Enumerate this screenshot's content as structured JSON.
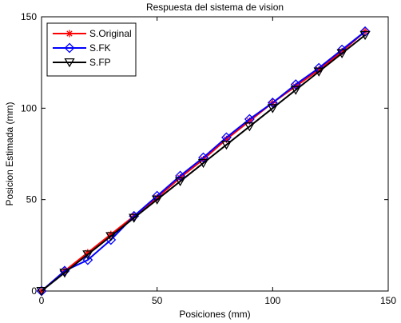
{
  "chart_data": {
    "type": "line",
    "title": "Respuesta del sistema de vision",
    "xlabel": "Posiciones (mm)",
    "ylabel": "Posicion Estimada (mm)",
    "xlim": [
      0,
      150
    ],
    "ylim": [
      0,
      150
    ],
    "xticks": [
      0,
      50,
      100,
      150
    ],
    "yticks": [
      0,
      50,
      100,
      150
    ],
    "grid": false,
    "legend_position": "top-left",
    "x": [
      0,
      10,
      20,
      30,
      40,
      50,
      60,
      70,
      80,
      90,
      100,
      110,
      120,
      130,
      140
    ],
    "series": [
      {
        "name": "S.Original",
        "color": "#ff0000",
        "marker": "asterisk",
        "values": [
          0,
          11,
          21,
          31,
          41,
          51,
          62,
          72,
          83,
          93,
          103,
          112,
          121,
          131,
          142
        ]
      },
      {
        "name": "S.FK",
        "color": "#0000ff",
        "marker": "diamond",
        "values": [
          0,
          11,
          17,
          28,
          41,
          52,
          63,
          73,
          84,
          94,
          103,
          113,
          122,
          132,
          142
        ]
      },
      {
        "name": "S.FP",
        "color": "#000000",
        "marker": "triangle-down",
        "values": [
          0,
          10,
          20,
          30,
          40,
          50,
          60,
          70,
          80,
          90,
          100,
          110,
          120,
          130,
          140
        ]
      }
    ]
  }
}
